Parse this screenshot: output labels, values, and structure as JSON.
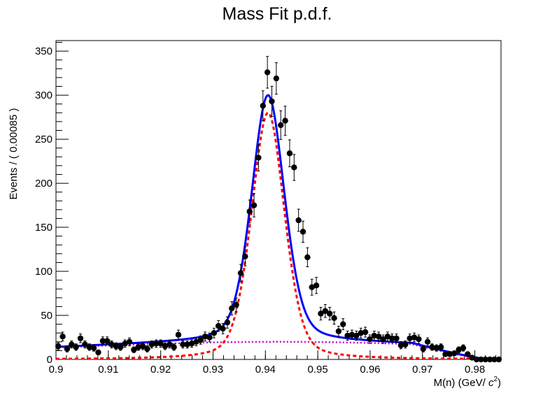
{
  "chart_data": {
    "type": "scatter",
    "title": "Mass Fit p.d.f.",
    "xlabel": "M(n) (GeV/ c²)",
    "xlabel_parts": {
      "pre": "M(n) (GeV/ ",
      "c": "c",
      "sup": "2",
      "post": ")"
    },
    "ylabel": "Events / ( 0.00085 )",
    "xlim": [
      0.9,
      0.985
    ],
    "ylim": [
      0,
      362
    ],
    "grid": false,
    "legend": "none",
    "x_ticks": [
      {
        "value": 0.9,
        "label": "0.9"
      },
      {
        "value": 0.91,
        "label": "0.91"
      },
      {
        "value": 0.92,
        "label": "0.92"
      },
      {
        "value": 0.93,
        "label": "0.93"
      },
      {
        "value": 0.94,
        "label": "0.94"
      },
      {
        "value": 0.95,
        "label": "0.95"
      },
      {
        "value": 0.96,
        "label": "0.96"
      },
      {
        "value": 0.97,
        "label": "0.97"
      },
      {
        "value": 0.98,
        "label": "0.98"
      }
    ],
    "y_ticks": [
      {
        "value": 0,
        "label": "0"
      },
      {
        "value": 50,
        "label": "50"
      },
      {
        "value": 100,
        "label": "100"
      },
      {
        "value": 150,
        "label": "150"
      },
      {
        "value": 200,
        "label": "200"
      },
      {
        "value": 250,
        "label": "250"
      },
      {
        "value": 300,
        "label": "300"
      },
      {
        "value": 350,
        "label": "350"
      }
    ],
    "colors": {
      "data": "#000000",
      "total": "#0000ff",
      "signal": "#ff0000",
      "background": "#cc00cc"
    },
    "series": [
      {
        "kind": "points_with_errors",
        "x": [
          0.90043,
          0.90128,
          0.90213,
          0.90298,
          0.90383,
          0.90468,
          0.90553,
          0.90638,
          0.90723,
          0.90808,
          0.90893,
          0.90978,
          0.91063,
          0.91148,
          0.91233,
          0.91318,
          0.91403,
          0.91488,
          0.91573,
          0.91658,
          0.91743,
          0.91828,
          0.91913,
          0.91998,
          0.92083,
          0.92168,
          0.92253,
          0.92338,
          0.92423,
          0.92508,
          0.92593,
          0.92678,
          0.92763,
          0.92848,
          0.92933,
          0.93018,
          0.93103,
          0.93188,
          0.93273,
          0.93358,
          0.93443,
          0.93528,
          0.93613,
          0.93698,
          0.93783,
          0.93868,
          0.93953,
          0.94038,
          0.94123,
          0.94208,
          0.94293,
          0.94378,
          0.94463,
          0.94548,
          0.94633,
          0.94718,
          0.94803,
          0.94888,
          0.94973,
          0.95058,
          0.95143,
          0.95228,
          0.95313,
          0.95398,
          0.95483,
          0.95568,
          0.95653,
          0.95738,
          0.95823,
          0.95908,
          0.95993,
          0.96078,
          0.96163,
          0.96248,
          0.96333,
          0.96418,
          0.96503,
          0.96588,
          0.96673,
          0.96758,
          0.96843,
          0.96928,
          0.97013,
          0.97098,
          0.97183,
          0.97268,
          0.97353,
          0.97438,
          0.97523,
          0.97608,
          0.97693,
          0.97778,
          0.97863,
          0.97948,
          0.98033,
          0.98118,
          0.98203,
          0.98288,
          0.98373,
          0.98458
        ],
        "y": [
          15,
          26,
          12,
          17,
          14,
          24,
          17,
          14,
          13,
          8,
          21,
          21,
          17,
          15,
          14,
          18,
          20,
          11,
          14,
          15,
          12,
          17,
          18,
          18,
          15,
          17,
          14,
          28,
          17,
          17,
          18,
          20,
          22,
          26,
          25,
          30,
          38,
          35,
          42,
          58,
          62,
          98,
          117,
          168,
          175,
          229,
          288,
          326,
          293,
          319,
          266,
          271,
          234,
          218,
          158,
          145,
          116,
          82,
          84,
          52,
          55,
          52,
          47,
          32,
          40,
          27,
          28,
          27,
          30,
          31,
          23,
          27,
          26,
          23,
          26,
          24,
          24,
          16,
          17,
          24,
          25,
          23,
          12,
          20,
          14,
          13,
          14,
          6,
          6,
          7,
          11,
          13,
          6,
          2,
          0,
          0,
          0,
          0,
          0,
          0
        ],
        "yerr": [
          4,
          5,
          3.5,
          4,
          3.7,
          5,
          4,
          3.7,
          3.6,
          2.8,
          4.6,
          4.6,
          4,
          3.9,
          3.7,
          4.2,
          4.5,
          3.3,
          3.7,
          3.9,
          3.5,
          4.1,
          4.2,
          4.2,
          3.9,
          4.1,
          3.7,
          5.3,
          4.1,
          4.1,
          4.2,
          4.5,
          4.7,
          5.1,
          5,
          5.5,
          6.2,
          5.9,
          6.5,
          7.6,
          7.9,
          9.9,
          10.8,
          13,
          13.2,
          15.1,
          17,
          18,
          17.1,
          17.9,
          16.3,
          16.5,
          15.3,
          14.8,
          12.6,
          12,
          10.8,
          9.1,
          9.2,
          7.2,
          7.4,
          7.2,
          6.9,
          5.7,
          6.3,
          5.2,
          5.3,
          5.2,
          5.5,
          5.6,
          4.8,
          5.2,
          5.1,
          4.8,
          5.1,
          4.9,
          4.9,
          4,
          4.1,
          4.9,
          5,
          4.8,
          3.5,
          4.5,
          3.7,
          3.6,
          3.7,
          2.4,
          2.4,
          2.6,
          3.3,
          3.6,
          2.4,
          1.4,
          0,
          0,
          0,
          0,
          0,
          0
        ]
      },
      {
        "kind": "curve",
        "style": "total",
        "line": "solid"
      },
      {
        "kind": "curve",
        "style": "signal",
        "line": "dashed"
      },
      {
        "kind": "curve",
        "style": "background",
        "line": "dotted"
      }
    ]
  }
}
